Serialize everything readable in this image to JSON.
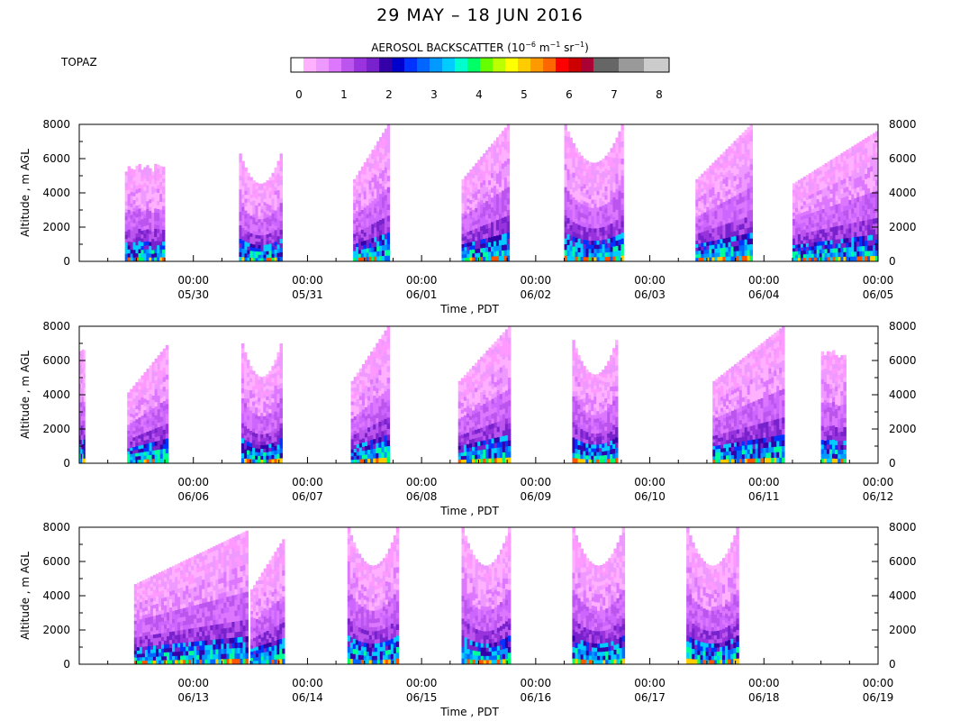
{
  "title": "29 MAY – 18 JUN 2016",
  "station": "TOPAZ",
  "colorbar": {
    "title_main": "AEROSOL BACKSCATTER (10",
    "title_exp1": "−6",
    "title_mid": " m",
    "title_exp2": "−1",
    "title_mid2": " sr",
    "title_exp3": "−1",
    "title_end": ")",
    "ticks": [
      "0",
      "1",
      "2",
      "3",
      "4",
      "5",
      "6",
      "7",
      "8"
    ],
    "colors": [
      "#ffffff",
      "#ffb0ff",
      "#ee99ff",
      "#dd77ff",
      "#bb55ee",
      "#9933dd",
      "#7722cc",
      "#3300aa",
      "#0000cc",
      "#0033ff",
      "#0066ff",
      "#0099ff",
      "#00ccff",
      "#00ffcc",
      "#00ff66",
      "#66ff00",
      "#bbff00",
      "#ffff00",
      "#ffcc00",
      "#ff9900",
      "#ff6600",
      "#ff0000",
      "#cc0000",
      "#aa0033",
      "#666666",
      "#666666",
      "#999999",
      "#999999",
      "#cccccc",
      "#cccccc"
    ]
  },
  "chart_data": [
    {
      "type": "heatmap",
      "xlabel": "Time , PDT",
      "ylabel": "Altitude , m AGL",
      "ylim": [
        0,
        8000
      ],
      "yticks": [
        "0",
        "2000",
        "4000",
        "6000",
        "8000"
      ],
      "xticks": [
        {
          "time": "00:00",
          "date": "05/30"
        },
        {
          "time": "00:00",
          "date": "05/31"
        },
        {
          "time": "00:00",
          "date": "06/01"
        },
        {
          "time": "00:00",
          "date": "06/02"
        },
        {
          "time": "00:00",
          "date": "06/03"
        },
        {
          "time": "00:00",
          "date": "06/04"
        },
        {
          "time": "00:00",
          "date": "06/05"
        }
      ],
      "day_range": [
        29.0,
        36.0
      ],
      "segments": [
        {
          "start": 29.4,
          "end": 29.75,
          "top": 5700,
          "shape": "flat"
        },
        {
          "start": 30.4,
          "end": 30.78,
          "top": 6300,
          "shape": "u"
        },
        {
          "start": 31.4,
          "end": 31.72,
          "top": 8000,
          "shape": "rise"
        },
        {
          "start": 32.35,
          "end": 32.77,
          "top": 8000,
          "shape": "rise"
        },
        {
          "start": 33.25,
          "end": 33.77,
          "top": 8000,
          "shape": "u"
        },
        {
          "start": 34.4,
          "end": 34.9,
          "top": 8000,
          "shape": "rise"
        },
        {
          "start": 35.25,
          "end": 36.0,
          "top": 7600,
          "shape": "rise"
        }
      ]
    },
    {
      "type": "heatmap",
      "xlabel": "Time , PDT",
      "ylabel": "Altitude , m AGL",
      "ylim": [
        0,
        8000
      ],
      "yticks": [
        "0",
        "2000",
        "4000",
        "6000",
        "8000"
      ],
      "xticks": [
        {
          "time": "00:00",
          "date": "06/06"
        },
        {
          "time": "00:00",
          "date": "06/07"
        },
        {
          "time": "00:00",
          "date": "06/08"
        },
        {
          "time": "00:00",
          "date": "06/09"
        },
        {
          "time": "00:00",
          "date": "06/10"
        },
        {
          "time": "00:00",
          "date": "06/11"
        },
        {
          "time": "00:00",
          "date": "06/12"
        }
      ],
      "day_range": [
        36.0,
        43.0
      ],
      "segments": [
        {
          "start": 36.0,
          "end": 36.05,
          "top": 7000,
          "shape": "flat"
        },
        {
          "start": 36.42,
          "end": 36.78,
          "top": 6900,
          "shape": "rise"
        },
        {
          "start": 37.42,
          "end": 37.78,
          "top": 7000,
          "shape": "u"
        },
        {
          "start": 38.38,
          "end": 38.72,
          "top": 8000,
          "shape": "rise"
        },
        {
          "start": 39.32,
          "end": 39.78,
          "top": 8000,
          "shape": "rise"
        },
        {
          "start": 40.32,
          "end": 40.72,
          "top": 7200,
          "shape": "u"
        },
        {
          "start": 41.55,
          "end": 42.18,
          "top": 8000,
          "shape": "rise"
        },
        {
          "start": 42.5,
          "end": 42.72,
          "top": 6700,
          "shape": "flat"
        }
      ]
    },
    {
      "type": "heatmap",
      "xlabel": "Time , PDT",
      "ylabel": "Altitude , m AGL",
      "ylim": [
        0,
        8000
      ],
      "yticks": [
        "0",
        "2000",
        "4000",
        "6000",
        "8000"
      ],
      "xticks": [
        {
          "time": "00:00",
          "date": "06/13"
        },
        {
          "time": "00:00",
          "date": "06/14"
        },
        {
          "time": "00:00",
          "date": "06/15"
        },
        {
          "time": "00:00",
          "date": "06/16"
        },
        {
          "time": "00:00",
          "date": "06/17"
        },
        {
          "time": "00:00",
          "date": "06/18"
        },
        {
          "time": "00:00",
          "date": "06/19"
        }
      ],
      "day_range": [
        43.0,
        50.0
      ],
      "segments": [
        {
          "start": 43.48,
          "end": 44.48,
          "top": 7800,
          "shape": "rise"
        },
        {
          "start": 44.5,
          "end": 44.8,
          "top": 7300,
          "shape": "rise"
        },
        {
          "start": 45.35,
          "end": 45.8,
          "top": 8000,
          "shape": "u"
        },
        {
          "start": 46.35,
          "end": 46.78,
          "top": 8000,
          "shape": "u"
        },
        {
          "start": 47.32,
          "end": 47.78,
          "top": 8000,
          "shape": "u"
        },
        {
          "start": 48.32,
          "end": 48.78,
          "top": 8000,
          "shape": "u"
        }
      ]
    }
  ]
}
